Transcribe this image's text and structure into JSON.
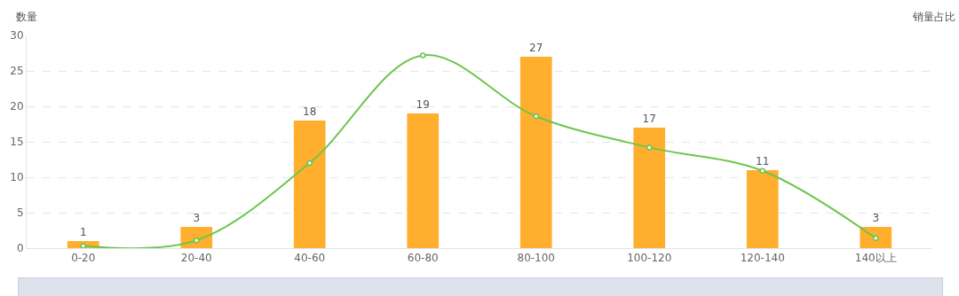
{
  "chart_data": {
    "type": "bar",
    "ylabel": "数量",
    "y2label": "销量占比",
    "categories": [
      "0-20",
      "20-40",
      "40-60",
      "60-80",
      "80-100",
      "100-120",
      "120-140",
      "140以上"
    ],
    "series": [
      {
        "color": "#ffae2e",
        "values": [
          1,
          3,
          18,
          19,
          27,
          17,
          11,
          3
        ],
        "value_labels": [
          "1",
          "3",
          "18",
          "19",
          "27",
          "17",
          "11",
          "3"
        ]
      },
      {
        "type": "line",
        "color": "#6cc64e",
        "marker": "circle",
        "values": [
          0.3,
          1.1,
          12,
          27.2,
          18.6,
          14.2,
          10.9,
          1.4
        ]
      }
    ],
    "ylim": [
      0,
      30
    ],
    "yticks": [
      0,
      5,
      10,
      15,
      20,
      25,
      30
    ],
    "grid": "y"
  }
}
